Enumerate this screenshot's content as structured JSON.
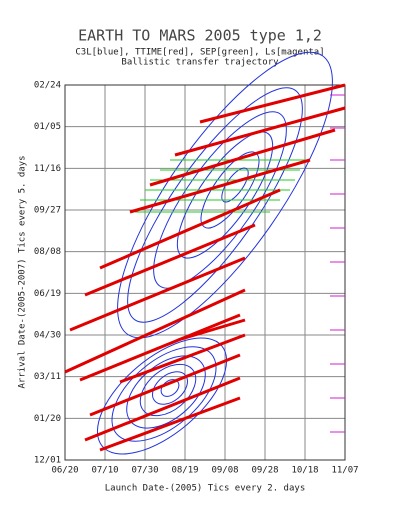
{
  "chart_data": {
    "type": "contour",
    "title": "EARTH TO MARS 2005  type 1,2",
    "subtitle": "C3L[blue], TTIME[red], SEP[green], Ls[magenta]",
    "note": "Ballistic transfer trajectory",
    "x_label": "Launch Date-(2005) Tics every 2. days",
    "y_label": "Arrival Date-(2005-2007) Tics every 5. days",
    "xlim": [
      0,
      140
    ],
    "xticks": [
      {
        "value": 0,
        "label": "06/20"
      },
      {
        "value": 20,
        "label": "07/10"
      },
      {
        "value": 40,
        "label": "07/30"
      },
      {
        "value": 60,
        "label": "08/19"
      },
      {
        "value": 80,
        "label": "09/08"
      },
      {
        "value": 100,
        "label": "09/28"
      },
      {
        "value": 120,
        "label": "10/18"
      },
      {
        "value": 140,
        "label": "11/07"
      }
    ],
    "ylim": [
      0,
      450
    ],
    "yticks": [
      {
        "value": 0,
        "label": "12/01"
      },
      {
        "value": 50,
        "label": "01/20"
      },
      {
        "value": 100,
        "label": "03/11"
      },
      {
        "value": 150,
        "label": "04/30"
      },
      {
        "value": 200,
        "label": "06/19"
      },
      {
        "value": 250,
        "label": "08/08"
      },
      {
        "value": 300,
        "label": "09/27"
      },
      {
        "value": 350,
        "label": "11/16"
      },
      {
        "value": 400,
        "label": "01/05"
      },
      {
        "value": 450,
        "label": "02/24"
      }
    ],
    "grid": true
  }
}
